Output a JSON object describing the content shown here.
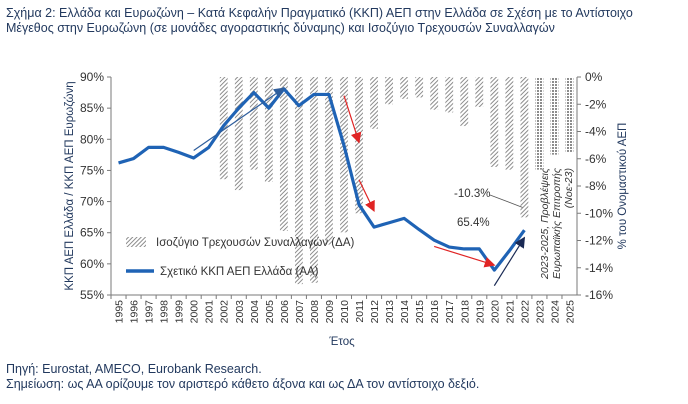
{
  "title": "Σχήμα 2: Ελλάδα και Ευρωζώνη – Κατά Κεφαλήν Πραγματικό (ΚΚΠ) ΑΕΠ στην Ελλάδα σε Σχέση με το Αντίστοιχο Μέγεθος στην Ευρωζώνη (σε μονάδες αγοραστικής δύναμης) και Ισοζύγιο Τρεχουσών Συναλλαγών",
  "footer": {
    "source": "Πηγή: Eurostat, AMECO, Eurobank Research.",
    "note": "Σημείωση: ως ΑΑ ορίζουμε τον αριστερό κάθετο άξονα και ως ΔΑ τον αντίστοιχο δεξιό."
  },
  "chart_data": {
    "type": "bar+line",
    "xlabel": "Έτος",
    "ylabel_left": "ΚΚΠ ΑΕΠ Ελλάδα / ΚΚΠ ΑΕΠ Ευρωζώνη",
    "ylabel_right": "% του Ονομαστικού ΑΕΠ",
    "ylim_left": [
      55,
      90
    ],
    "ylim_right": [
      -16,
      0
    ],
    "yticks_left": [
      "55%",
      "60%",
      "65%",
      "70%",
      "75%",
      "80%",
      "85%",
      "90%"
    ],
    "yticks_right": [
      "0%",
      "-2%",
      "-4%",
      "-6%",
      "-8%",
      "-10%",
      "-12%",
      "-14%",
      "-16%"
    ],
    "categories": [
      "1995",
      "1996",
      "1997",
      "1998",
      "1999",
      "2000",
      "2001",
      "2002",
      "2003",
      "2004",
      "2005",
      "2006",
      "2007",
      "2008",
      "2009",
      "2010",
      "2011",
      "2012",
      "2013",
      "2014",
      "2015",
      "2016",
      "2017",
      "2018",
      "2019",
      "2020",
      "2021",
      "2022",
      "2023",
      "2024",
      "2025"
    ],
    "series": [
      {
        "name": "Ισοζύγιο Τρεχουσών Συναλλαγών (ΔΑ)",
        "axis": "right",
        "kind": "bar",
        "pattern": "hatch",
        "color": "#8c8c8c",
        "values": [
          null,
          null,
          null,
          null,
          null,
          null,
          null,
          -7.5,
          -8.3,
          -6.8,
          -7.7,
          -11.3,
          -15.2,
          -15.1,
          -12.3,
          -11.4,
          -10.0,
          -3.8,
          -2.0,
          -1.6,
          -1.5,
          -2.4,
          -2.6,
          -3.6,
          -2.2,
          -6.6,
          -6.8,
          -10.3,
          -6.8,
          -5.7,
          -5.5
        ]
      },
      {
        "name": "Σχετικό ΚΚΠ ΑΕΠ Ελλάδα (ΑΑ)",
        "axis": "left",
        "kind": "line",
        "color": "#1f63b5",
        "values": [
          76.2,
          76.9,
          78.7,
          78.7,
          77.9,
          77.0,
          78.7,
          82.2,
          85.0,
          87.5,
          85.0,
          88.1,
          85.4,
          87.2,
          87.2,
          79.0,
          69.5,
          65.9,
          66.6,
          67.3,
          65.5,
          63.8,
          62.7,
          62.4,
          62.4,
          59.0,
          62.1,
          65.4,
          null,
          null,
          null
        ]
      }
    ],
    "annotations": [
      {
        "text": "-10.3%"
      },
      {
        "text": "65.4%"
      },
      {
        "text": "2023-2025, Προβλέψεις Ευρωπαϊκής Επιτροπής (Νοε-23)"
      }
    ],
    "arrows": [
      {
        "color": "#2f5e9c",
        "from": {
          "year": "2000",
          "value": 78.2
        },
        "to": {
          "year": "2006",
          "value": 88.2
        }
      },
      {
        "color": "#e02424",
        "from": {
          "year": "2010",
          "value": 87.0
        },
        "to": {
          "year": "2011",
          "value": 79.5
        }
      },
      {
        "color": "#e02424",
        "from": {
          "year": "2011",
          "value": 73.5
        },
        "to": {
          "year": "2012",
          "value": 68.5
        }
      },
      {
        "color": "#e02424",
        "from": {
          "year": "2016",
          "value": 62.8
        },
        "to": {
          "year": "2020",
          "value": 59.8
        }
      },
      {
        "color": "#1a2a55",
        "from": {
          "year": "2020",
          "value": 56.5
        },
        "to": {
          "year": "2022",
          "value": 64.2
        }
      }
    ]
  }
}
